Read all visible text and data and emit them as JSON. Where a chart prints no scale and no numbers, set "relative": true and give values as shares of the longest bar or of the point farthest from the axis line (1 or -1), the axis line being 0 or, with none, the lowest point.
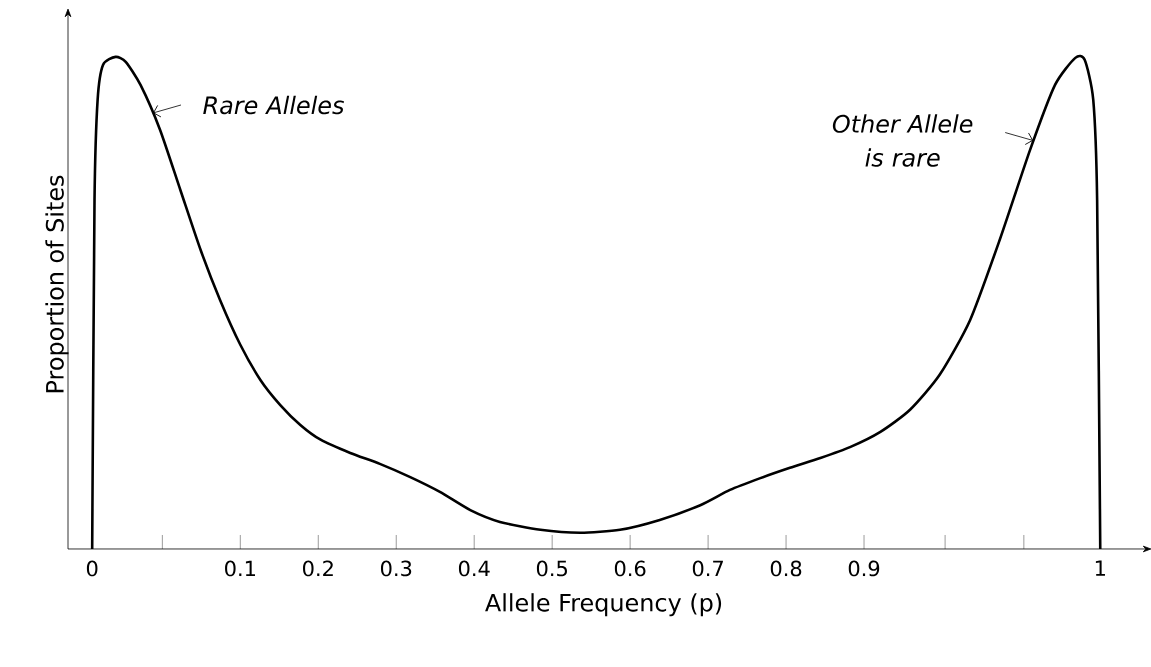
{
  "chart_data": {
    "type": "line",
    "relative": true,
    "xlabel": "Allele Frequency (p)",
    "ylabel": "Proportion of Sites",
    "xlim": [
      -0.121,
      1.254
    ],
    "xticks": [
      {
        "value": -0.09,
        "label": "0"
      },
      {
        "value": 0.0,
        "label": null
      },
      0.1,
      0.2,
      0.3,
      0.4,
      0.5,
      0.6,
      0.7,
      0.8,
      0.9,
      {
        "value": 1.004,
        "label": null
      },
      {
        "value": 1.105,
        "label": null
      },
      {
        "value": 1.203,
        "label": "1"
      }
    ],
    "series": [
      {
        "color": "#000000",
        "x": [
          -0.09,
          -0.087,
          -0.083,
          -0.076,
          -0.06,
          -0.047,
          -0.028,
          -0.003,
          0.023,
          0.049,
          0.074,
          0.1,
          0.126,
          0.151,
          0.177,
          0.203,
          0.241,
          0.279,
          0.318,
          0.356,
          0.395,
          0.433,
          0.485,
          0.536,
          0.587,
          0.638,
          0.69,
          0.728,
          0.767,
          0.805,
          0.844,
          0.882,
          0.921,
          0.959,
          0.997,
          1.036,
          1.074,
          1.113,
          1.145,
          1.171,
          1.183,
          1.194,
          1.199,
          1.203
        ],
        "values": [
          0,
          0.709,
          0.913,
          0.984,
          1.0,
          0.99,
          0.943,
          0.852,
          0.73,
          0.608,
          0.506,
          0.415,
          0.343,
          0.293,
          0.252,
          0.222,
          0.195,
          0.173,
          0.146,
          0.116,
          0.079,
          0.055,
          0.039,
          0.033,
          0.039,
          0.059,
          0.089,
          0.12,
          0.144,
          0.165,
          0.185,
          0.207,
          0.238,
          0.283,
          0.354,
          0.465,
          0.628,
          0.811,
          0.943,
          0.998,
          0.994,
          0.913,
          0.709,
          0
        ]
      }
    ],
    "annotations": [
      {
        "text": "Rare Alleles",
        "x": -0.012,
        "y": 0.886
      },
      {
        "text": "Other Allele is rare",
        "x": 1.117,
        "y": 0.83
      }
    ],
    "grid": false,
    "legend": false,
    "marker": "none",
    "line_style": "solid"
  }
}
